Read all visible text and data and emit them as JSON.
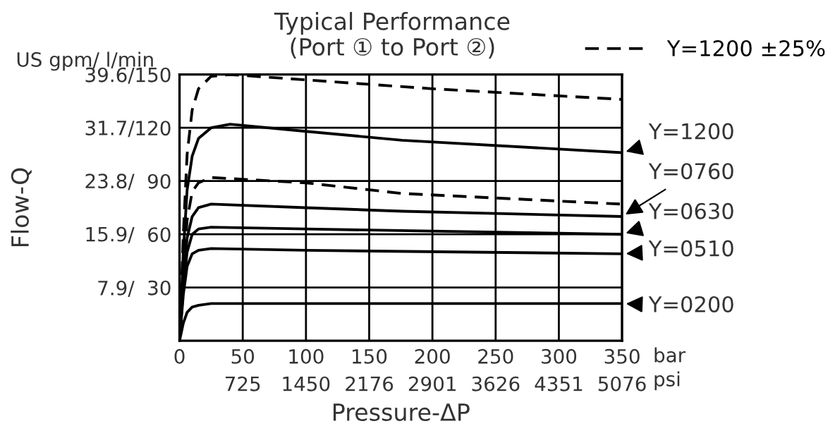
{
  "chart_data": {
    "type": "line",
    "title": "Typical Performance",
    "subtitle": "(Port ① to Port ②)",
    "xlabel": "Pressure-ΔP",
    "ylabel": "Flow-Q",
    "annotations": [
      "US gpm/ l/min",
      "bar",
      "psi"
    ],
    "xlim": [
      0,
      350
    ],
    "ylim": [
      0,
      39.6
    ],
    "xticks": [
      0,
      50,
      100,
      150,
      200,
      250,
      300,
      350
    ],
    "x2lim": [
      0,
      5076
    ],
    "x2ticks": [
      725,
      1450,
      2176,
      2901,
      3626,
      4351,
      5076
    ],
    "y2ticks": [
      30,
      60,
      90,
      120,
      150
    ],
    "y2lim": [
      0,
      150
    ],
    "yticks": [
      {
        "value": 7.9,
        "label": "7.9/"
      },
      {
        "value": 15.9,
        "label": "15.9/"
      },
      {
        "value": 23.8,
        "label": "23.8/"
      },
      {
        "value": 31.7,
        "label": "31.7/"
      },
      {
        "value": 39.6,
        "label": "39.6/"
      }
    ],
    "grid": true,
    "legend": "top right",
    "marker": "none",
    "series": [
      {
        "name": "Y=1200 ±25%",
        "axis": "y2",
        "color": "#000000",
        "line_style": "dashed",
        "x": [
          0,
          3,
          6,
          10,
          15,
          25,
          40,
          100,
          200,
          350
        ],
        "values": [
          0,
          60,
          105,
          130,
          142,
          149,
          150,
          147,
          142,
          136
        ]
      },
      {
        "name": "Y=1200",
        "axis": "y2",
        "color": "#000000",
        "line_style": "solid",
        "x": [
          0,
          3,
          6,
          10,
          15,
          25,
          40,
          100,
          176,
          350
        ],
        "values": [
          0,
          50,
          85,
          104,
          114,
          120,
          122,
          118,
          113,
          106
        ]
      },
      {
        "axis": "y2",
        "color": "#000000",
        "line_style": "dashed",
        "x": [
          0,
          3,
          6,
          10,
          15,
          25,
          100,
          176,
          350
        ],
        "values": [
          0,
          40,
          68,
          84,
          89,
          92,
          89,
          83,
          77
        ]
      },
      {
        "name": "Y=0760",
        "axis": "y2",
        "color": "#000000",
        "line_style": "solid",
        "x": [
          0,
          3,
          6,
          10,
          15,
          25,
          100,
          176,
          350
        ],
        "values": [
          0,
          35,
          58,
          70,
          75,
          77,
          75,
          73,
          70
        ]
      },
      {
        "name": "Y=0630",
        "axis": "y2",
        "color": "#000000",
        "line_style": "solid",
        "x": [
          0,
          3,
          6,
          10,
          15,
          25,
          100,
          350
        ],
        "values": [
          0,
          30,
          50,
          60,
          63,
          64,
          63,
          60
        ]
      },
      {
        "name": "Y=0510",
        "axis": "y2",
        "color": "#000000",
        "line_style": "solid",
        "x": [
          0,
          3,
          6,
          10,
          15,
          25,
          100,
          350
        ],
        "values": [
          0,
          26,
          42,
          49,
          51,
          52,
          51,
          49
        ]
      },
      {
        "name": "Y=0200",
        "axis": "y2",
        "color": "#000000",
        "line_style": "solid",
        "x": [
          0,
          3,
          6,
          10,
          15,
          25,
          100,
          350
        ],
        "values": [
          0,
          10,
          16,
          19,
          20,
          21,
          21,
          21
        ]
      }
    ]
  }
}
